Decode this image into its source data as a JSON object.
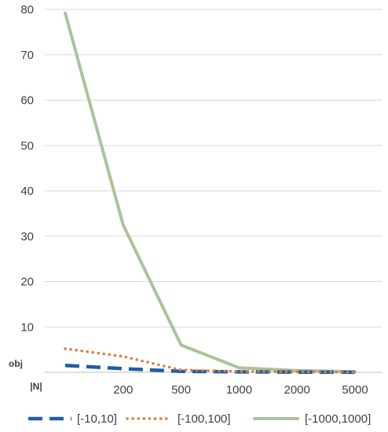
{
  "chart_data": {
    "type": "line",
    "categories": [
      "",
      "200",
      "500",
      "1000",
      "2000",
      "5000"
    ],
    "series": [
      {
        "name": "[-10,10]",
        "values": [
          1.5,
          0.8,
          0.2,
          0.1,
          0.05,
          0.0
        ],
        "color": "#1f5fa8",
        "style": "dashed"
      },
      {
        "name": "[-100,100]",
        "values": [
          5.2,
          3.5,
          0.5,
          0.2,
          0.1,
          0.0
        ],
        "color": "#e07b39",
        "style": "dotted"
      },
      {
        "name": "[-1000,1000]",
        "values": [
          79.2,
          32.5,
          6.0,
          1.0,
          0.4,
          0.1
        ],
        "color": "#a9c49a",
        "style": "solid"
      }
    ],
    "extra_series_color": "#c0141c",
    "ylim": [
      0,
      80
    ],
    "yticks": [
      10,
      20,
      30,
      40,
      50,
      60,
      70,
      80
    ],
    "xlabel": "|N|",
    "ylabel": "obj",
    "grid": true,
    "legend": "bottom"
  }
}
